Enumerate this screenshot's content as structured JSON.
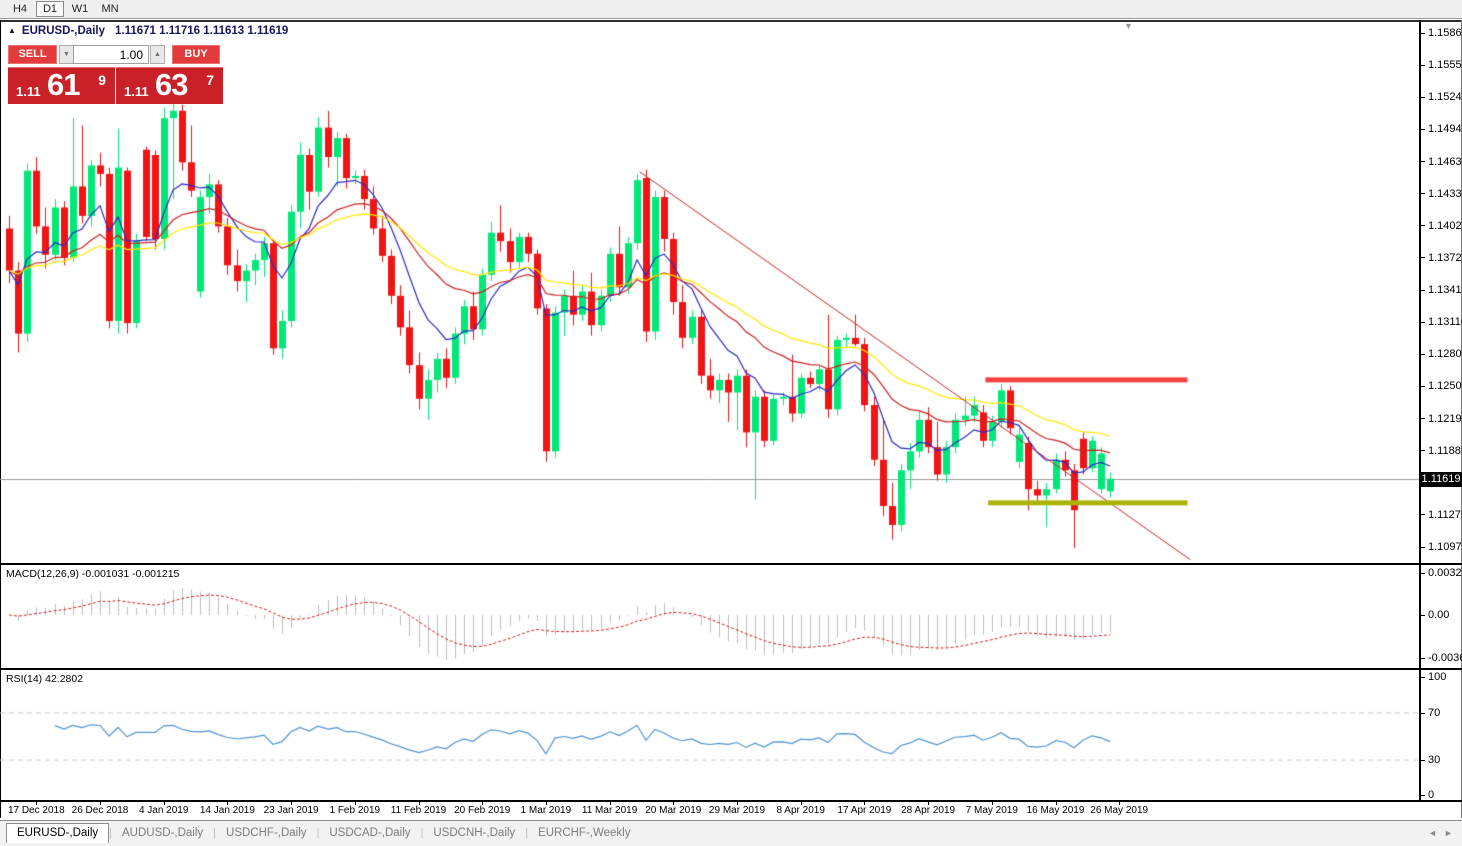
{
  "toolbar": {
    "timeframes": [
      {
        "label": "H4",
        "active": false
      },
      {
        "label": "D1",
        "active": true
      },
      {
        "label": "W1",
        "active": false
      },
      {
        "label": "MN",
        "active": false
      }
    ]
  },
  "header": {
    "collapse_arrow": "▲",
    "symbol": "EURUSD-,Daily",
    "quotes": "1.11671 1.11716 1.11613 1.11619"
  },
  "trade": {
    "sell_label": "SELL",
    "buy_label": "BUY",
    "volume": "1.00",
    "down_arrow": "▼",
    "up_arrow": "▲",
    "sell_price": {
      "prefix": "1.11",
      "big": "61",
      "sup": "9"
    },
    "buy_price": {
      "prefix": "1.11",
      "big": "63",
      "sup": "7"
    }
  },
  "price_axis": {
    "ticks": [
      "1.15860",
      "1.15550",
      "1.15245",
      "1.14940",
      "1.14635",
      "1.14330",
      "1.14025",
      "1.13720",
      "1.13415",
      "1.13110",
      "1.12805",
      "1.12500",
      "1.12195",
      "1.11885",
      "1.11580",
      "1.11275",
      "1.10970"
    ],
    "current": "1.11619"
  },
  "macd_panel": {
    "name": "MACD(12,26,9)",
    "values": "-0.001031 -0.001215",
    "scale": [
      "0.003287",
      "0.00",
      "-0.003659"
    ]
  },
  "rsi_panel": {
    "name": "RSI(14)",
    "value": "42.2802",
    "scale": [
      "100",
      "70",
      "30",
      "0"
    ]
  },
  "time_axis": {
    "labels": [
      "17 Dec 2018",
      "26 Dec 2018",
      "4 Jan 2019",
      "14 Jan 2019",
      "23 Jan 2019",
      "1 Feb 2019",
      "11 Feb 2019",
      "20 Feb 2019",
      "1 Mar 2019",
      "11 Mar 2019",
      "20 Mar 2019",
      "29 Mar 2019",
      "8 Apr 2019",
      "17 Apr 2019",
      "28 Apr 2019",
      "7 May 2019",
      "16 May 2019",
      "26 May 2019"
    ]
  },
  "tabs": [
    {
      "label": "EURUSD-,Daily",
      "active": true
    },
    {
      "label": "AUDUSD-,Daily",
      "active": false
    },
    {
      "label": "USDCHF-,Daily",
      "active": false
    },
    {
      "label": "USDCAD-,Daily",
      "active": false
    },
    {
      "label": "USDCNH-,Daily",
      "active": false
    },
    {
      "label": "EURCHF-,Weekly",
      "active": false
    }
  ],
  "tab_scroll": {
    "left": "◄",
    "right": "►"
  },
  "shift_marker": "▼",
  "chart_data": {
    "type": "candlestick",
    "symbol": "EURUSD-",
    "timeframe": "Daily",
    "current_price": 1.11619,
    "axis": {
      "price_top": 1.1586,
      "price_bottom": 1.1097,
      "tick_step": 0.00305
    },
    "colors": {
      "bull": "#00e878",
      "bear": "#f01414",
      "ma_fast": "#2a2ac8",
      "ma_mid": "#cc2222",
      "ma_slow": "#ffe600",
      "hist": "#bcbcbc",
      "signal": "#cc2222",
      "rsi": "#4f93ce",
      "level_dash": "#c8c8c8",
      "price_line": "#9a9a9a",
      "resistance": "#f54040",
      "support": "#a9b408"
    },
    "moving_averages": [
      {
        "name": "fast",
        "type": "ema",
        "period": 8
      },
      {
        "name": "mid",
        "type": "ema",
        "period": 21
      },
      {
        "name": "slow",
        "type": "ema",
        "period": 34
      }
    ],
    "indicators": {
      "macd": {
        "fast": 12,
        "slow": 26,
        "signal": 9,
        "current_main": -0.001031,
        "current_signal": -0.001215,
        "scale_max": 0.003287,
        "scale_min": -0.003659
      },
      "rsi": {
        "period": 14,
        "current": 42.2802,
        "levels": [
          70,
          30
        ],
        "scale": [
          100,
          70,
          30,
          0
        ]
      }
    },
    "objects": [
      {
        "type": "trendline",
        "from_index": 69.3,
        "from_price": 1.1454,
        "to_index": 129.8,
        "to_price": 1.1085,
        "width": 1
      },
      {
        "type": "hline_segment",
        "name": "resistance",
        "price": 1.1256,
        "from_index": 107.3,
        "to_index": 129.5,
        "width": 5
      },
      {
        "type": "hline_segment",
        "name": "support",
        "price": 1.1139,
        "from_index": 107.6,
        "to_index": 129.5,
        "width": 5
      }
    ],
    "time_tick_indices": [
      3,
      10,
      17,
      24,
      31,
      38,
      45,
      52,
      59,
      66,
      73,
      80,
      87,
      94,
      101,
      108,
      115,
      122
    ],
    "candles": [
      [
        1.14,
        1.1412,
        1.1348,
        1.136
      ],
      [
        1.136,
        1.1368,
        1.1282,
        1.13
      ],
      [
        1.13,
        1.1462,
        1.1292,
        1.1455
      ],
      [
        1.1455,
        1.1468,
        1.1395,
        1.1402
      ],
      [
        1.1402,
        1.142,
        1.1362,
        1.1375
      ],
      [
        1.1375,
        1.1428,
        1.137,
        1.142
      ],
      [
        1.142,
        1.1426,
        1.1365,
        1.1372
      ],
      [
        1.1372,
        1.1505,
        1.1368,
        1.144
      ],
      [
        1.144,
        1.1498,
        1.1405,
        1.1412
      ],
      [
        1.1412,
        1.1465,
        1.1402,
        1.146
      ],
      [
        1.146,
        1.1472,
        1.144,
        1.1452
      ],
      [
        1.1452,
        1.1458,
        1.1305,
        1.1312
      ],
      [
        1.1312,
        1.1495,
        1.13,
        1.1458
      ],
      [
        1.1455,
        1.1458,
        1.13,
        1.131
      ],
      [
        1.131,
        1.1395,
        1.1305,
        1.1388
      ],
      [
        1.1475,
        1.1478,
        1.1388,
        1.1392
      ],
      [
        1.147,
        1.1474,
        1.138,
        1.139
      ],
      [
        1.139,
        1.1515,
        1.138,
        1.1505
      ],
      [
        1.1505,
        1.1522,
        1.1428,
        1.1512
      ],
      [
        1.1512,
        1.1518,
        1.1455,
        1.1463
      ],
      [
        1.1463,
        1.1498,
        1.143,
        1.1436
      ],
      [
        1.134,
        1.1436,
        1.1334,
        1.143
      ],
      [
        1.143,
        1.1452,
        1.1414,
        1.1442
      ],
      [
        1.1442,
        1.1446,
        1.1396,
        1.1402
      ],
      [
        1.1402,
        1.141,
        1.1356,
        1.1365
      ],
      [
        1.1365,
        1.138,
        1.134,
        1.135
      ],
      [
        1.135,
        1.1366,
        1.133,
        1.136
      ],
      [
        1.136,
        1.1376,
        1.1346,
        1.137
      ],
      [
        1.137,
        1.1392,
        1.1354,
        1.1386
      ],
      [
        1.1386,
        1.139,
        1.128,
        1.1286
      ],
      [
        1.1286,
        1.1322,
        1.1276,
        1.1312
      ],
      [
        1.1312,
        1.1422,
        1.1306,
        1.1416
      ],
      [
        1.1416,
        1.1482,
        1.14,
        1.147
      ],
      [
        1.147,
        1.1476,
        1.1418,
        1.1435
      ],
      [
        1.1435,
        1.1506,
        1.143,
        1.1496
      ],
      [
        1.1496,
        1.1512,
        1.1458,
        1.1468
      ],
      [
        1.1468,
        1.1492,
        1.144,
        1.1486
      ],
      [
        1.1486,
        1.149,
        1.1438,
        1.1448
      ],
      [
        1.1448,
        1.1455,
        1.1442,
        1.145
      ],
      [
        1.145,
        1.1456,
        1.1418,
        1.1428
      ],
      [
        1.1428,
        1.144,
        1.1394,
        1.14
      ],
      [
        1.14,
        1.1412,
        1.1368,
        1.1374
      ],
      [
        1.1374,
        1.138,
        1.1328,
        1.1336
      ],
      [
        1.1336,
        1.1346,
        1.1298,
        1.1306
      ],
      [
        1.1306,
        1.1322,
        1.1262,
        1.127
      ],
      [
        1.127,
        1.1282,
        1.1228,
        1.1238
      ],
      [
        1.1238,
        1.1266,
        1.1218,
        1.1256
      ],
      [
        1.1256,
        1.1282,
        1.1244,
        1.1276
      ],
      [
        1.1276,
        1.1286,
        1.1248,
        1.1258
      ],
      [
        1.1258,
        1.1306,
        1.1252,
        1.13
      ],
      [
        1.13,
        1.1332,
        1.129,
        1.1326
      ],
      [
        1.1326,
        1.134,
        1.1294,
        1.1304
      ],
      [
        1.1304,
        1.1362,
        1.1298,
        1.1356
      ],
      [
        1.1356,
        1.1406,
        1.135,
        1.1396
      ],
      [
        1.1396,
        1.1422,
        1.1378,
        1.1388
      ],
      [
        1.1388,
        1.14,
        1.1358,
        1.1368
      ],
      [
        1.1368,
        1.1396,
        1.1362,
        1.1392
      ],
      [
        1.1392,
        1.1396,
        1.1368,
        1.1376
      ],
      [
        1.1376,
        1.138,
        1.1318,
        1.1324
      ],
      [
        1.1324,
        1.1328,
        1.1178,
        1.1188
      ],
      [
        1.1188,
        1.1326,
        1.1182,
        1.132
      ],
      [
        1.132,
        1.1342,
        1.1298,
        1.1336
      ],
      [
        1.1336,
        1.136,
        1.1308,
        1.1318
      ],
      [
        1.1318,
        1.1346,
        1.1312,
        1.134
      ],
      [
        1.134,
        1.1358,
        1.1298,
        1.1308
      ],
      [
        1.1308,
        1.1342,
        1.1302,
        1.1336
      ],
      [
        1.1336,
        1.1382,
        1.133,
        1.1376
      ],
      [
        1.1376,
        1.1402,
        1.1336,
        1.1344
      ],
      [
        1.1344,
        1.1392,
        1.1338,
        1.1386
      ],
      [
        1.1386,
        1.1452,
        1.138,
        1.1446
      ],
      [
        1.1448,
        1.1456,
        1.1292,
        1.1302
      ],
      [
        1.1302,
        1.1436,
        1.1294,
        1.143
      ],
      [
        1.143,
        1.1436,
        1.1378,
        1.139
      ],
      [
        1.139,
        1.1396,
        1.1318,
        1.133
      ],
      [
        1.133,
        1.1346,
        1.1286,
        1.1296
      ],
      [
        1.1296,
        1.1322,
        1.129,
        1.1316
      ],
      [
        1.1316,
        1.1322,
        1.1252,
        1.126
      ],
      [
        1.126,
        1.1276,
        1.1238,
        1.1246
      ],
      [
        1.1246,
        1.1262,
        1.1234,
        1.1256
      ],
      [
        1.1256,
        1.1262,
        1.1216,
        1.1244
      ],
      [
        1.1244,
        1.1266,
        1.1208,
        1.126
      ],
      [
        1.126,
        1.1266,
        1.1192,
        1.1206
      ],
      [
        1.1206,
        1.1246,
        1.1142,
        1.124
      ],
      [
        1.124,
        1.1246,
        1.1192,
        1.1198
      ],
      [
        1.1198,
        1.1242,
        1.1194,
        1.1238
      ],
      [
        1.1238,
        1.1244,
        1.1232,
        1.124
      ],
      [
        1.124,
        1.128,
        1.1216,
        1.1224
      ],
      [
        1.1224,
        1.1262,
        1.122,
        1.1258
      ],
      [
        1.1258,
        1.1264,
        1.1248,
        1.1252
      ],
      [
        1.1252,
        1.127,
        1.1246,
        1.1266
      ],
      [
        1.1266,
        1.1318,
        1.122,
        1.1228
      ],
      [
        1.1228,
        1.1298,
        1.1222,
        1.1294
      ],
      [
        1.1294,
        1.13,
        1.1286,
        1.1296
      ],
      [
        1.1296,
        1.1318,
        1.1288,
        1.129
      ],
      [
        1.129,
        1.1296,
        1.1226,
        1.1232
      ],
      [
        1.1232,
        1.124,
        1.1174,
        1.118
      ],
      [
        1.118,
        1.1218,
        1.1126,
        1.1136
      ],
      [
        1.1136,
        1.1158,
        1.1104,
        1.1118
      ],
      [
        1.1118,
        1.1176,
        1.1112,
        1.117
      ],
      [
        1.117,
        1.1196,
        1.1152,
        1.1188
      ],
      [
        1.1188,
        1.1226,
        1.1182,
        1.1218
      ],
      [
        1.1218,
        1.123,
        1.1186,
        1.1192
      ],
      [
        1.1192,
        1.1216,
        1.116,
        1.1166
      ],
      [
        1.1166,
        1.1198,
        1.1158,
        1.1192
      ],
      [
        1.1192,
        1.1224,
        1.1186,
        1.1218
      ],
      [
        1.1218,
        1.124,
        1.1212,
        1.1222
      ],
      [
        1.1222,
        1.124,
        1.1216,
        1.1232
      ],
      [
        1.1225,
        1.1232,
        1.1192,
        1.1198
      ],
      [
        1.1198,
        1.1222,
        1.1192,
        1.1216
      ],
      [
        1.1216,
        1.1252,
        1.121,
        1.1246
      ],
      [
        1.1246,
        1.125,
        1.1204,
        1.121
      ],
      [
        1.1178,
        1.121,
        1.1172,
        1.1204
      ],
      [
        1.1196,
        1.1202,
        1.1132,
        1.1152
      ],
      [
        1.1152,
        1.116,
        1.114,
        1.1146
      ],
      [
        1.1146,
        1.1158,
        1.1116,
        1.1152
      ],
      [
        1.1152,
        1.1186,
        1.1148,
        1.118
      ],
      [
        1.118,
        1.1188,
        1.1164,
        1.117
      ],
      [
        1.117,
        1.1176,
        1.1096,
        1.1132
      ],
      [
        1.12,
        1.1206,
        1.1166,
        1.1172
      ],
      [
        1.1172,
        1.1202,
        1.1168,
        1.1198
      ],
      [
        1.1152,
        1.1192,
        1.1148,
        1.1186
      ],
      [
        1.115,
        1.1168,
        1.1144,
        1.1162
      ]
    ]
  }
}
